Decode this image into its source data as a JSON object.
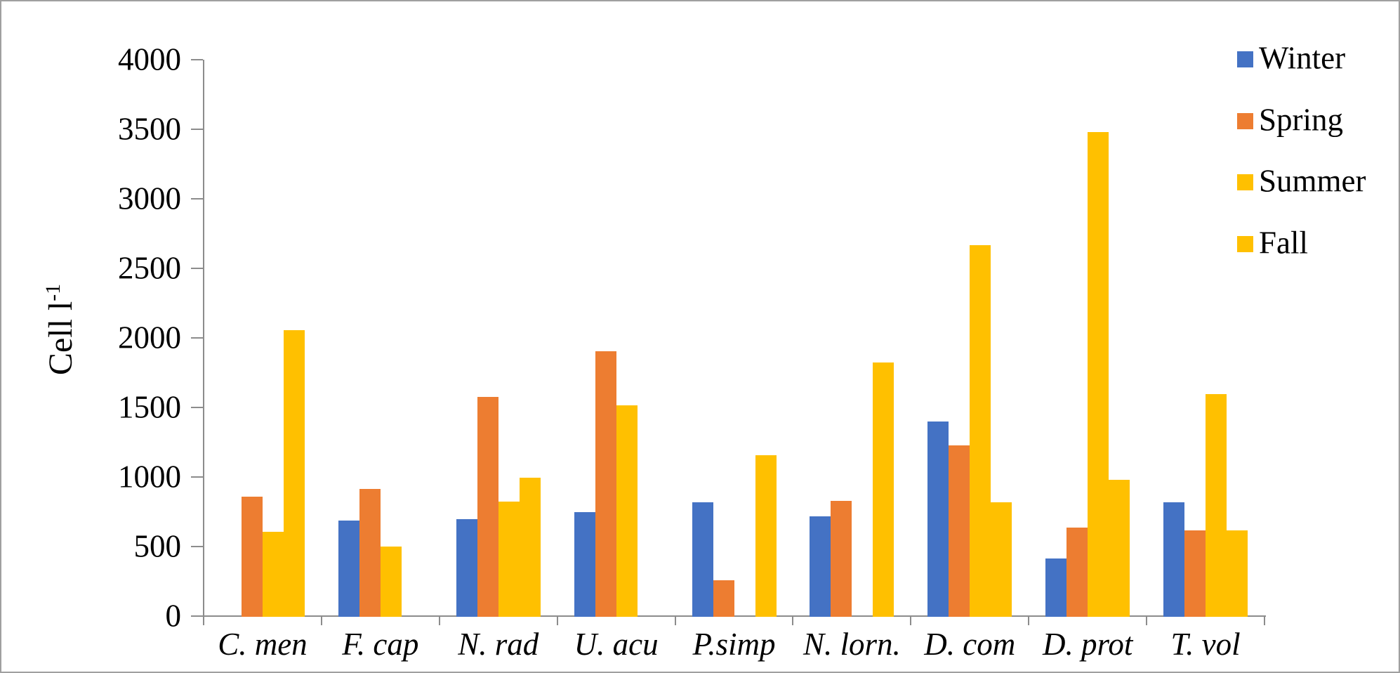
{
  "chart_data": {
    "type": "bar",
    "title": "",
    "ylabel": {
      "base": "Cell l",
      "sup": "-1"
    },
    "xlabel": "",
    "categories": [
      "C. men",
      "F. cap",
      "N. rad",
      "U. acu",
      "P.simp",
      "N. lorn.",
      "D. com",
      "D. prot",
      "T. vol"
    ],
    "series": [
      {
        "name": "Winter",
        "color": "#4472C4",
        "values": [
          0,
          690,
          700,
          750,
          825,
          720,
          1405,
          420,
          825
        ]
      },
      {
        "name": "Spring",
        "color": "#ED7D31",
        "values": [
          865,
          920,
          1580,
          1910,
          265,
          835,
          1230,
          640,
          620
        ]
      },
      {
        "name": "Summer",
        "color": "#FFC000",
        "values": [
          610,
          505,
          830,
          1520,
          0,
          0,
          2670,
          3485,
          1600
        ]
      },
      {
        "name": "Fall",
        "color": "#FFC000",
        "values": [
          2060,
          0,
          1000,
          0,
          1160,
          1830,
          825,
          985,
          620
        ]
      }
    ],
    "ylim": [
      0,
      4000
    ],
    "ytick_step": 500,
    "y_ticks": [
      "4000",
      "3500",
      "3000",
      "2500",
      "2000",
      "1500",
      "1000",
      "500",
      "0"
    ],
    "grid": false,
    "legend_position": "top-right",
    "axis_color": "#8c8c8c",
    "text_color": "#000000"
  }
}
